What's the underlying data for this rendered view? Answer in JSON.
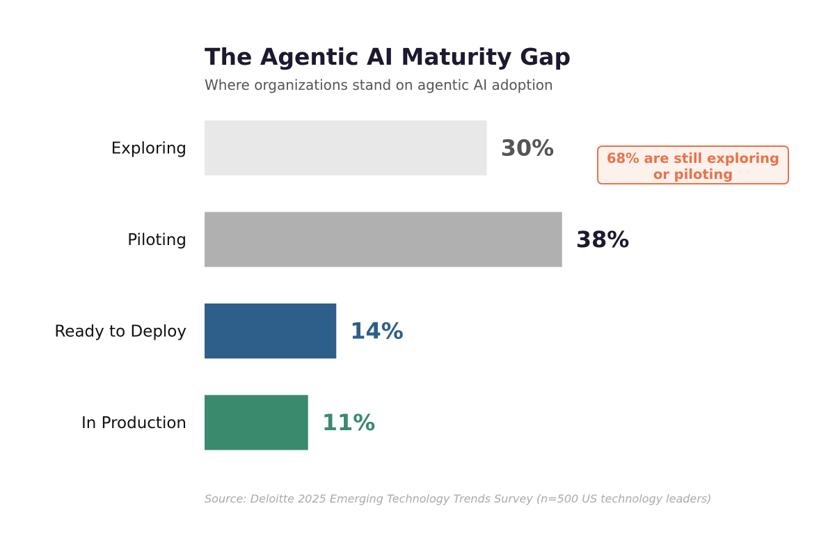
{
  "chart_data": {
    "type": "bar",
    "orientation": "horizontal",
    "title": "The Agentic AI Maturity Gap",
    "subtitle": "Where organizations stand on agentic AI adoption",
    "categories": [
      "Exploring",
      "Piloting",
      "Ready to Deploy",
      "In Production"
    ],
    "values": [
      30,
      38,
      14,
      11
    ],
    "value_labels": [
      "30%",
      "38%",
      "14%",
      "11%"
    ],
    "bar_colors": [
      "#e8e8e8",
      "#b0b0b0",
      "#2e5f8a",
      "#3a8a6e"
    ],
    "label_colors": [
      "#555555",
      "#1b1a2e",
      "#2e5f8a",
      "#3a8a6e"
    ],
    "xlim": [
      0,
      50
    ],
    "grid": false,
    "annotation": {
      "lines": [
        "68% are still exploring",
        "or piloting"
      ],
      "color": "#e8734a"
    },
    "source": "Source: Deloitte 2025 Emerging Technology Trends Survey (n=500 US technology leaders)"
  }
}
